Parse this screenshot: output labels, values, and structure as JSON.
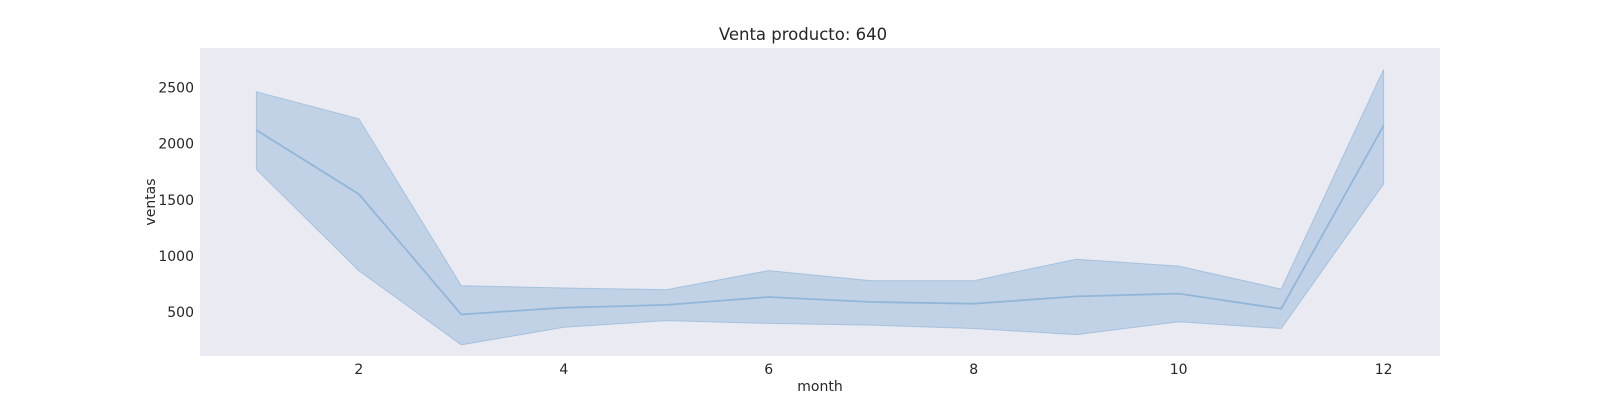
{
  "chart_data": {
    "type": "line",
    "title": "Venta producto: 640",
    "xlabel": "month",
    "ylabel": "ventas",
    "x": [
      1,
      2,
      3,
      4,
      5,
      6,
      7,
      8,
      9,
      10,
      11,
      12
    ],
    "series": [
      {
        "values": [
          2120,
          1550,
          480,
          540,
          565,
          635,
          590,
          575,
          640,
          665,
          530,
          2160
        ],
        "lower": [
          1770,
          870,
          210,
          365,
          425,
          400,
          385,
          355,
          300,
          415,
          355,
          1640
        ],
        "upper": [
          2460,
          2220,
          735,
          715,
          700,
          870,
          780,
          780,
          970,
          910,
          705,
          2660
        ],
        "color": "#92b6d8"
      }
    ],
    "xlim": [
      0.45,
      12.55
    ],
    "ylim": [
      110,
      2850
    ],
    "xticks": [
      2,
      4,
      6,
      8,
      10,
      12
    ],
    "yticks": [
      500,
      1000,
      1500,
      2000,
      2500
    ],
    "grid": false,
    "background_color": "#eaeaf2"
  }
}
